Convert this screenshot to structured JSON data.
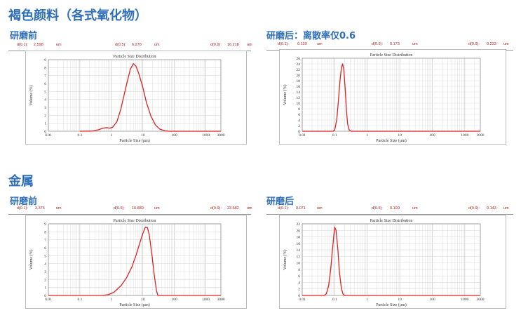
{
  "sections": [
    {
      "title": "褐色颜料（各式氧化物）"
    },
    {
      "title": "金属"
    }
  ],
  "panels": [
    {
      "subtitle": "研磨前",
      "stats": {
        "d01_label": "d(0.1):",
        "d01": "2.598",
        "d05_label": "d(0.5):",
        "d05": "6.276",
        "d09_label": "d(0.9):",
        "d09": "16.218",
        "unit": "um"
      },
      "xlabel": "Particle Size (μm)"
    },
    {
      "subtitle": "研磨后：离散率仅0.6",
      "stats": {
        "d01_label": "d(0.1):",
        "d01": "0.129",
        "d05_label": "d(0.5):",
        "d05": "0.173",
        "d09_label": "d(0.9):",
        "d09": "0.233",
        "unit": "um"
      },
      "xlabel": "Particle Size (μm)"
    },
    {
      "subtitle": "研磨前",
      "stats": {
        "d01_label": "d(0.1):",
        "d01": "3.375",
        "d05_label": "d(0.5):",
        "d05": "10.880",
        "d09_label": "d(0.9):",
        "d09": "23.582",
        "unit": "um"
      },
      "xlabel": "Particle Size (μm)"
    },
    {
      "subtitle": "研磨后",
      "stats": {
        "d01_label": "d(0.1):",
        "d01": "0.071",
        "d05_label": "d(0.5):",
        "d05": "0.100",
        "d09_label": "d(0.9):",
        "d09": "0.143",
        "unit": "um"
      },
      "xlabel": "Particle Size (μm)"
    }
  ],
  "chart_data": [
    {
      "type": "line",
      "title": "Particle Size Distribution",
      "xlabel": "Particle Size (μm)",
      "ylabel": "Volume (%)",
      "x_scale": "log",
      "xlim": [
        0.01,
        3000
      ],
      "ylim": [
        0,
        9
      ],
      "xticks": [
        "0.01",
        "0.1",
        "1",
        "10",
        "100",
        "1000",
        "3000"
      ],
      "yticks": [
        "0",
        "1",
        "2",
        "3",
        "4",
        "5",
        "6",
        "7",
        "8",
        "9"
      ],
      "series": [
        {
          "color": "#e02020",
          "x": [
            0.1,
            0.25,
            0.4,
            0.55,
            0.7,
            0.9,
            1.1,
            1.5,
            2.0,
            3.0,
            4.0,
            5.0,
            6.0,
            7.5,
            10,
            13,
            18,
            25,
            35,
            50,
            70,
            100,
            3000
          ],
          "y": [
            0,
            0.02,
            0.2,
            0.4,
            0.45,
            0.4,
            0.5,
            1.2,
            2.8,
            5.8,
            7.8,
            8.5,
            8.2,
            7.2,
            5.5,
            3.6,
            1.9,
            0.8,
            0.25,
            0.05,
            0,
            0,
            0
          ]
        }
      ]
    },
    {
      "type": "line",
      "title": "Particle Size Distribution",
      "xlabel": "Particle Size (μm)",
      "ylabel": "Volume (%)",
      "x_scale": "log",
      "xlim": [
        0.01,
        3000
      ],
      "ylim": [
        0,
        26
      ],
      "xticks": [
        "0.01",
        "0.1",
        "1",
        "10",
        "100",
        "1000",
        "3000"
      ],
      "yticks": [
        "0",
        "2",
        "4",
        "6",
        "8",
        "10",
        "12",
        "14",
        "16",
        "18",
        "20",
        "22",
        "24",
        "26"
      ],
      "series": [
        {
          "color": "#e02020",
          "x": [
            0.01,
            0.09,
            0.1,
            0.115,
            0.13,
            0.145,
            0.16,
            0.175,
            0.19,
            0.21,
            0.23,
            0.25,
            0.28,
            0.32,
            3000
          ],
          "y": [
            0,
            0,
            0.5,
            4,
            11,
            18,
            22.5,
            24,
            22,
            15,
            7,
            2.5,
            0.4,
            0,
            0
          ]
        }
      ]
    },
    {
      "type": "line",
      "title": "Particle Size Distribution",
      "xlabel": "Particle Size (μm)",
      "ylabel": "Volume (%)",
      "x_scale": "log",
      "xlim": [
        0.01,
        3000
      ],
      "ylim": [
        0,
        9
      ],
      "xticks": [
        "0.01",
        "0.1",
        "1",
        "10",
        "100",
        "1000",
        "3000"
      ],
      "yticks": [
        "0",
        "1",
        "2",
        "3",
        "4",
        "5",
        "6",
        "7",
        "8",
        "9"
      ],
      "series": [
        {
          "color": "#e02020",
          "x": [
            0.01,
            0.5,
            0.8,
            1.2,
            2,
            3,
            4.5,
            6,
            8,
            10,
            12,
            14,
            16,
            19,
            23,
            27,
            30,
            3000
          ],
          "y": [
            0,
            0,
            0.1,
            0.4,
            1.2,
            2.2,
            3.6,
            5.0,
            6.6,
            7.8,
            8.6,
            8.5,
            7.6,
            5.4,
            2.6,
            0.6,
            0,
            0
          ]
        }
      ]
    },
    {
      "type": "line",
      "title": "Particle Size Distribution",
      "xlabel": "Particle Size (μm)",
      "ylabel": "Volume (%)",
      "x_scale": "log",
      "xlim": [
        0.01,
        3000
      ],
      "ylim": [
        0,
        22
      ],
      "xticks": [
        "0.01",
        "0.1",
        "1",
        "10",
        "100",
        "1000",
        "3000"
      ],
      "yticks": [
        "0",
        "2",
        "4",
        "6",
        "8",
        "10",
        "12",
        "14",
        "16",
        "18",
        "20",
        "22"
      ],
      "series": [
        {
          "color": "#e02020",
          "x": [
            0.01,
            0.048,
            0.055,
            0.065,
            0.075,
            0.085,
            0.095,
            0.1,
            0.11,
            0.125,
            0.14,
            0.16,
            0.18,
            0.2,
            3000
          ],
          "y": [
            0,
            0,
            0.5,
            3,
            8,
            14,
            19,
            21,
            20,
            14,
            7,
            2.2,
            0.4,
            0,
            0
          ]
        }
      ]
    }
  ]
}
